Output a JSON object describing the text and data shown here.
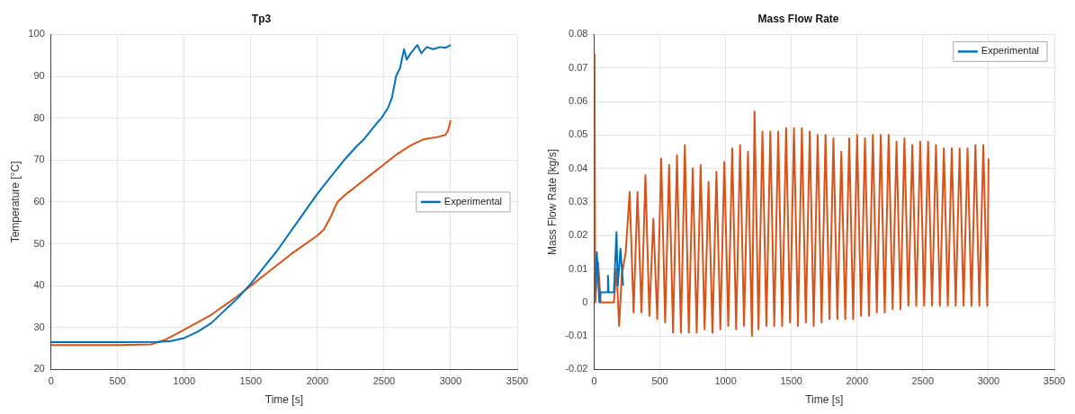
{
  "chart_data": [
    {
      "type": "line",
      "title": "Tp3",
      "xlabel": "Time [s]",
      "ylabel": "Temperature [°C]",
      "xlim": [
        0,
        3500
      ],
      "xticks": [
        0,
        500,
        1000,
        1500,
        2000,
        2500,
        3000,
        3500
      ],
      "ylim": [
        20,
        100
      ],
      "yticks": [
        20,
        30,
        40,
        50,
        60,
        70,
        80,
        90,
        100
      ],
      "grid": true,
      "legend": "right",
      "series": [
        {
          "name": "Experimental",
          "color": "#0072bd",
          "x": [
            0,
            500,
            800,
            900,
            1000,
            1100,
            1200,
            1300,
            1400,
            1500,
            1600,
            1700,
            1800,
            1900,
            2000,
            2100,
            2200,
            2300,
            2350,
            2400,
            2450,
            2480,
            2500,
            2530,
            2560,
            2590,
            2620,
            2650,
            2670,
            2700,
            2750,
            2780,
            2820,
            2870,
            2920,
            2960,
            3000
          ],
          "values": [
            26.5,
            26.5,
            26.6,
            26.8,
            27.5,
            29,
            31,
            34,
            37,
            40.5,
            44.5,
            48.5,
            53,
            57.5,
            62,
            66,
            70,
            73.5,
            75,
            77,
            79,
            80,
            81,
            82.5,
            85,
            90,
            92,
            96.5,
            94,
            95.5,
            97.5,
            95.5,
            97,
            96.5,
            97,
            96.8,
            97.5
          ]
        },
        {
          "color": "#d95319",
          "x": [
            0,
            500,
            750,
            850,
            1000,
            1200,
            1400,
            1500,
            1600,
            1800,
            2000,
            2050,
            2100,
            2150,
            2200,
            2300,
            2400,
            2500,
            2600,
            2700,
            2800,
            2900,
            2960,
            2980,
            3000
          ],
          "values": [
            25.8,
            25.8,
            26,
            27,
            29.5,
            33,
            37.5,
            40,
            42.5,
            47.5,
            52,
            53.5,
            56.5,
            60,
            61.5,
            64,
            66.5,
            69,
            71.5,
            73.5,
            75,
            75.5,
            76,
            77,
            79.5
          ]
        }
      ]
    },
    {
      "type": "line",
      "title": "Mass Flow Rate",
      "xlabel": "Time [s]",
      "ylabel": "Mass Flow Rate [kg/s]",
      "xlim": [
        0,
        3500
      ],
      "xticks": [
        0,
        500,
        1000,
        1500,
        2000,
        2500,
        3000,
        3500
      ],
      "ylim": [
        -0.02,
        0.08
      ],
      "yticks": [
        -0.02,
        -0.01,
        0,
        0.01,
        0.02,
        0.03,
        0.04,
        0.05,
        0.06,
        0.07,
        0.08
      ],
      "grid": true,
      "legend": "top right",
      "series": [
        {
          "name": "Experimental",
          "color": "#0072bd",
          "x": [
            0,
            20,
            40,
            50,
            100,
            105,
            110,
            150,
            170,
            180,
            200,
            220
          ],
          "values": [
            0,
            0.015,
            0,
            0.003,
            0.003,
            0.008,
            0.003,
            0.003,
            0.021,
            0.005,
            0.016,
            0.005
          ]
        },
        {
          "color": "#d95319",
          "x": [
            0,
            3,
            8,
            30,
            50,
            100,
            150,
            170,
            190,
            210,
            240,
            270,
            300,
            330,
            360,
            390,
            420,
            450,
            480,
            510,
            540,
            570,
            600,
            630,
            660,
            690,
            720,
            750,
            780,
            810,
            840,
            870,
            900,
            930,
            960,
            990,
            1020,
            1050,
            1080,
            1110,
            1140,
            1170,
            1200,
            1220,
            1250,
            1280,
            1310,
            1340,
            1370,
            1400,
            1430,
            1460,
            1490,
            1520,
            1550,
            1580,
            1610,
            1640,
            1670,
            1700,
            1730,
            1760,
            1790,
            1820,
            1850,
            1880,
            1910,
            1940,
            1970,
            2000,
            2030,
            2060,
            2090,
            2120,
            2150,
            2180,
            2210,
            2240,
            2270,
            2300,
            2330,
            2360,
            2390,
            2420,
            2450,
            2480,
            2510,
            2540,
            2570,
            2600,
            2630,
            2660,
            2690,
            2720,
            2750,
            2780,
            2810,
            2840,
            2870,
            2900,
            2930,
            2960,
            2990,
            3000
          ],
          "values": [
            0,
            0.074,
            0,
            0.012,
            0,
            0,
            0,
            0.01,
            -0.007,
            0.008,
            0.015,
            0.033,
            -0.003,
            0.033,
            -0.003,
            0.038,
            -0.004,
            0.025,
            -0.005,
            0.043,
            -0.006,
            0.041,
            -0.009,
            0.044,
            -0.009,
            0.047,
            -0.009,
            0.04,
            -0.009,
            0.041,
            -0.008,
            0.036,
            -0.009,
            0.039,
            -0.008,
            0.042,
            -0.007,
            0.046,
            -0.008,
            0.047,
            -0.007,
            0.045,
            -0.01,
            0.057,
            -0.008,
            0.051,
            -0.007,
            0.051,
            -0.007,
            0.051,
            -0.007,
            0.052,
            -0.006,
            0.052,
            -0.007,
            0.052,
            -0.006,
            0.051,
            -0.007,
            0.05,
            -0.006,
            0.05,
            -0.005,
            0.049,
            -0.005,
            0.045,
            -0.005,
            0.049,
            -0.005,
            0.05,
            -0.004,
            0.049,
            -0.004,
            0.05,
            -0.003,
            0.05,
            -0.003,
            0.05,
            -0.002,
            0.048,
            -0.002,
            0.049,
            -0.001,
            0.047,
            -0.001,
            0.048,
            -0.001,
            0.048,
            -0.001,
            0.047,
            -0.001,
            0.046,
            -0.001,
            0.046,
            -0.001,
            0.046,
            -0.001,
            0.046,
            -0.001,
            0.047,
            -0.001,
            0.047,
            -0.001,
            0.043
          ]
        }
      ]
    }
  ]
}
